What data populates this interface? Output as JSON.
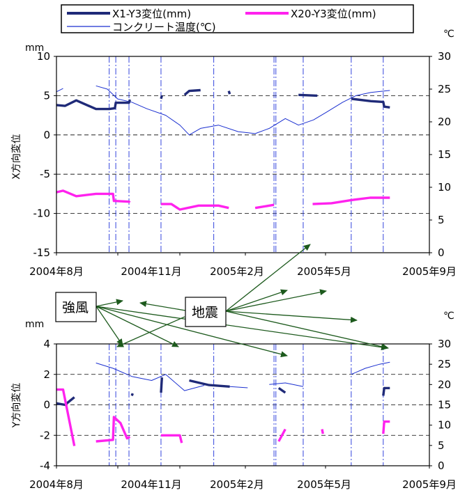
{
  "legend": {
    "x1_label": "X1-Y3変位(mm)",
    "x20_label": "X20-Y3変位(mm)",
    "temp_label": "コンクリート温度(℃)"
  },
  "annotations": {
    "wind_label": "強風",
    "quake_label": "地震"
  },
  "colors": {
    "x1": "#1f2a78",
    "x20": "#ff22ee",
    "temp": "#1a2fd0",
    "event_lines": "#3344dd",
    "arrows": "#1d5a1d"
  },
  "chart_data": [
    {
      "type": "line",
      "panel": "top",
      "ylabel": "X方向変位",
      "y_unit": "mm",
      "y2_unit": "℃",
      "ylim": [
        -15,
        10
      ],
      "y_ticks": [
        "10",
        "5",
        "0",
        "-5",
        "-10",
        "-15"
      ],
      "y2lim": [
        0,
        30
      ],
      "y2_ticks": [
        "30",
        "25",
        "20",
        "15",
        "10",
        "5",
        "0"
      ],
      "x_tick_labels": [
        "2004年8月",
        "2004年11月",
        "2005年2月",
        "2005年5月",
        "2005年9月"
      ],
      "grid": "horizontal-dashed",
      "series": [
        {
          "name": "X1-Y3変位(mm)",
          "axis": "left",
          "points": [
            [
              "2004-08-01",
              3.8
            ],
            [
              "2004-08-10",
              3.7
            ],
            [
              "2004-08-22",
              4.4
            ],
            [
              "2004-09-12",
              3.3
            ],
            [
              "2004-09-26",
              3.3
            ],
            [
              "2004-10-02",
              3.4
            ],
            [
              "2004-10-03",
              4.1
            ],
            [
              "2004-10-17",
              4.1
            ],
            [
              "2004-10-18",
              4.5
            ],
            [
              "2004-11-20",
              4.6
            ],
            [
              "2004-11-21",
              5.0
            ],
            [
              "2004-12-15",
              5.1
            ],
            [
              "2004-12-20",
              5.6
            ],
            [
              "2005-01-01",
              5.7
            ],
            [
              "2005-01-31",
              5.6
            ],
            [
              "2005-02-01",
              5.2
            ],
            [
              "2005-04-15",
              5.1
            ],
            [
              "2005-05-05",
              5.0
            ],
            [
              "2005-06-10",
              4.6
            ],
            [
              "2005-07-01",
              4.3
            ],
            [
              "2005-07-14",
              4.2
            ],
            [
              "2005-07-15",
              3.6
            ],
            [
              "2005-07-21",
              3.5
            ]
          ]
        },
        {
          "name": "X20-Y3変位(mm)",
          "axis": "left",
          "points": [
            [
              "2004-08-01",
              -7.3
            ],
            [
              "2004-08-08",
              -7.1
            ],
            [
              "2004-08-22",
              -7.8
            ],
            [
              "2004-09-12",
              -7.5
            ],
            [
              "2004-09-30",
              -7.5
            ],
            [
              "2004-10-01",
              -8.4
            ],
            [
              "2004-10-17",
              -8.5
            ],
            [
              "2004-10-18",
              -8.6
            ],
            [
              "2004-11-20",
              -8.8
            ],
            [
              "2004-12-01",
              -8.8
            ],
            [
              "2004-12-10",
              -9.5
            ],
            [
              "2004-12-30",
              -9.0
            ],
            [
              "2005-01-20",
              -9.0
            ],
            [
              "2005-01-31",
              -9.3
            ],
            [
              "2005-02-28",
              -9.3
            ],
            [
              "2005-03-20",
              -8.9
            ],
            [
              "2005-04-30",
              -8.8
            ],
            [
              "2005-05-20",
              -8.7
            ],
            [
              "2005-06-10",
              -8.3
            ],
            [
              "2005-06-30",
              -8.0
            ],
            [
              "2005-07-21",
              -8.0
            ]
          ]
        },
        {
          "name": "コンクリート温度(℃)",
          "axis": "right",
          "points": [
            [
              "2004-08-01",
              24.6
            ],
            [
              "2004-08-08",
              25.1
            ],
            [
              "2004-09-12",
              25.5
            ],
            [
              "2004-09-24",
              25.0
            ],
            [
              "2004-10-05",
              23.5
            ],
            [
              "2004-10-20",
              23.0
            ],
            [
              "2004-11-05",
              22.0
            ],
            [
              "2004-11-25",
              21.0
            ],
            [
              "2004-12-10",
              19.5
            ],
            [
              "2004-12-20",
              18.0
            ],
            [
              "2005-01-01",
              19.0
            ],
            [
              "2005-01-20",
              19.5
            ],
            [
              "2005-02-10",
              18.5
            ],
            [
              "2005-02-28",
              18.2
            ],
            [
              "2005-03-15",
              19.0
            ],
            [
              "2005-04-01",
              20.5
            ],
            [
              "2005-04-15",
              19.5
            ],
            [
              "2005-05-01",
              20.3
            ],
            [
              "2005-05-15",
              21.5
            ],
            [
              "2005-06-01",
              23.0
            ],
            [
              "2005-06-15",
              24.0
            ],
            [
              "2005-07-01",
              24.5
            ],
            [
              "2005-07-21",
              24.8
            ]
          ]
        }
      ]
    },
    {
      "type": "line",
      "panel": "bottom",
      "ylabel": "Y方向変位",
      "y_unit": "mm",
      "y2_unit": "℃",
      "ylim": [
        -4,
        4
      ],
      "y_ticks": [
        "4",
        "2",
        "0",
        "-2",
        "-4"
      ],
      "y2lim": [
        0,
        30
      ],
      "y2_ticks": [
        "30",
        "25",
        "20",
        "15",
        "10",
        "5",
        "0"
      ],
      "x_tick_labels": [
        "2004年8月",
        "2004年11月",
        "2005年2月",
        "2005年5月",
        "2005年9月"
      ],
      "grid": "horizontal-dashed",
      "series": [
        {
          "name": "X1-Y3変位(mm)",
          "axis": "left",
          "points": [
            [
              "2004-08-01",
              0.1
            ],
            [
              "2004-08-10",
              0.0
            ],
            [
              "2004-08-20",
              0.5
            ],
            [
              "2004-09-12",
              0.6
            ],
            [
              "2004-10-20",
              0.6
            ],
            [
              "2004-10-21",
              0.75
            ],
            [
              "2004-11-20",
              0.8
            ],
            [
              "2004-11-21",
              1.8
            ],
            [
              "2004-12-20",
              1.6
            ],
            [
              "2005-01-10",
              1.3
            ],
            [
              "2005-02-01",
              1.2
            ],
            [
              "2005-03-25",
              1.1
            ],
            [
              "2005-04-01",
              0.8
            ],
            [
              "2005-05-01",
              0.7
            ],
            [
              "2005-07-14",
              0.6
            ],
            [
              "2005-07-15",
              1.1
            ],
            [
              "2005-07-21",
              1.1
            ]
          ]
        },
        {
          "name": "X20-Y3変位(mm)",
          "axis": "left",
          "points": [
            [
              "2004-08-01",
              1.0
            ],
            [
              "2004-08-08",
              1.0
            ],
            [
              "2004-08-20",
              -2.7
            ],
            [
              "2004-09-12",
              -2.4
            ],
            [
              "2004-09-30",
              -2.3
            ],
            [
              "2004-10-01",
              -0.8
            ],
            [
              "2004-10-08",
              -1.2
            ],
            [
              "2004-10-15",
              -2.2
            ],
            [
              "2004-10-18",
              -2.1
            ],
            [
              "2004-11-20",
              -2.0
            ],
            [
              "2004-12-10",
              -2.0
            ],
            [
              "2004-12-12",
              -2.5
            ],
            [
              "2005-03-25",
              -2.4
            ],
            [
              "2005-04-01",
              -1.6
            ],
            [
              "2005-05-10",
              -1.6
            ],
            [
              "2005-05-11",
              -1.9
            ],
            [
              "2005-07-14",
              -1.9
            ],
            [
              "2005-07-15",
              -1.1
            ],
            [
              "2005-07-21",
              -1.1
            ]
          ]
        },
        {
          "name": "コンクリート温度(℃)",
          "axis": "right",
          "points": [
            [
              "2004-09-12",
              25.3
            ],
            [
              "2004-09-30",
              24.0
            ],
            [
              "2004-10-20",
              22.0
            ],
            [
              "2004-11-10",
              21.0
            ],
            [
              "2004-11-25",
              22.5
            ],
            [
              "2004-12-15",
              18.5
            ],
            [
              "2005-01-05",
              19.8
            ],
            [
              "2005-02-01",
              19.5
            ],
            [
              "2005-02-20",
              19.2
            ],
            [
              "2005-03-15",
              20.0
            ],
            [
              "2005-04-01",
              20.4
            ],
            [
              "2005-04-20",
              19.5
            ],
            [
              "2005-05-15",
              20.0
            ],
            [
              "2005-06-10",
              22.5
            ],
            [
              "2005-06-25",
              24.0
            ],
            [
              "2005-07-10",
              25.0
            ],
            [
              "2005-07-21",
              25.5
            ]
          ]
        }
      ]
    }
  ],
  "event_dates": {
    "wind": [
      "2004-09-26",
      "2004-10-03",
      "2004-10-17",
      "2004-11-20",
      "2005-03-22",
      "2005-07-14"
    ],
    "earthquake": [
      "2004-09-26",
      "2004-10-17",
      "2005-01-15",
      "2005-03-20",
      "2005-04-20",
      "2005-06-10"
    ]
  }
}
